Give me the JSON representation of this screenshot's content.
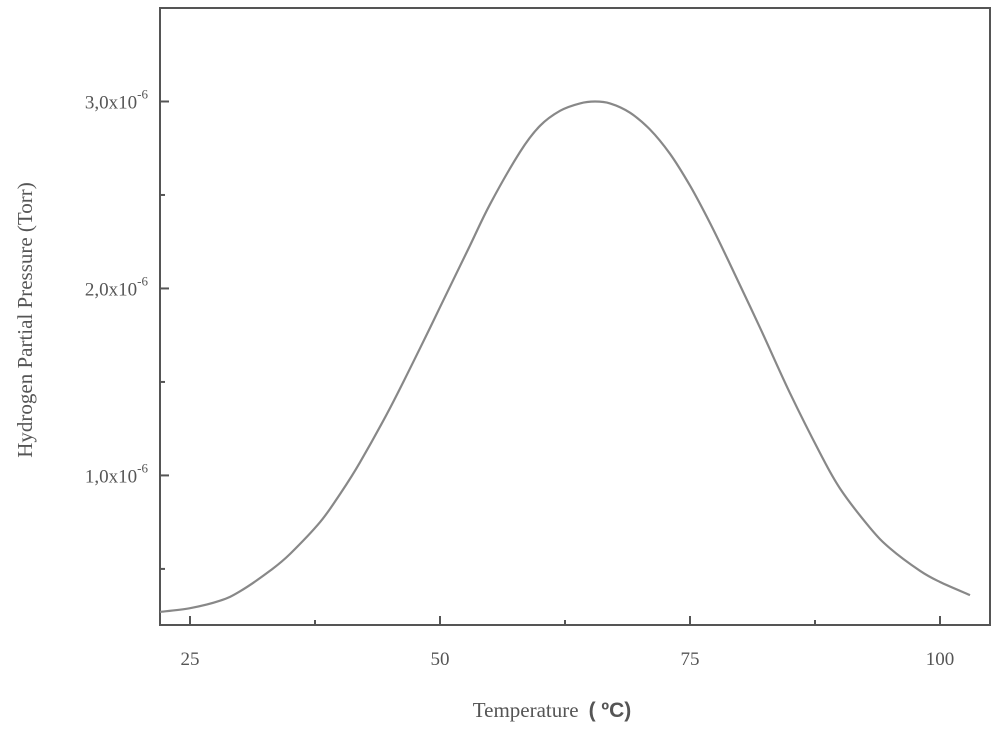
{
  "chart_data": {
    "type": "line",
    "xlabel": "Temperature",
    "xlabel_unit": "( ºC)",
    "ylabel": "Hydrogen Partial Pressure (Torr)",
    "xlim": [
      22,
      105
    ],
    "ylim": [
      2e-07,
      3.5e-06
    ],
    "x_ticks": [
      25,
      50,
      75,
      100
    ],
    "x_tick_labels": [
      "25",
      "50",
      "75",
      "100"
    ],
    "x_minor_ticks": [
      37.5,
      62.5,
      87.5
    ],
    "y_ticks": [
      1e-06,
      2e-06,
      3e-06
    ],
    "y_tick_labels": [
      {
        "mantissa": "1,0x10",
        "exponent": "-6"
      },
      {
        "mantissa": "2,0x10",
        "exponent": "-6"
      },
      {
        "mantissa": "3,0x10",
        "exponent": "-6"
      }
    ],
    "y_minor_ticks": [
      5e-07,
      1.5e-06,
      2.5e-06
    ],
    "grid": false,
    "series": [
      {
        "color": "#888888",
        "x": [
          22,
          25,
          28,
          30,
          33,
          35,
          38,
          40,
          42,
          45,
          48,
          50,
          53,
          55,
          58,
          60,
          62,
          64,
          65.5,
          67,
          69,
          71,
          73,
          75,
          77,
          79,
          82,
          85,
          88,
          90,
          93,
          95,
          98,
          100,
          103
        ],
        "y": [
          2.7e-07,
          2.9e-07,
          3.3e-07,
          3.8e-07,
          4.9e-07,
          5.8e-07,
          7.5e-07,
          9e-07,
          1.07e-06,
          1.36e-06,
          1.68e-06,
          1.9e-06,
          2.23e-06,
          2.45e-06,
          2.73e-06,
          2.87e-06,
          2.95e-06,
          2.99e-06,
          3e-06,
          2.99e-06,
          2.94e-06,
          2.85e-06,
          2.72e-06,
          2.55e-06,
          2.35e-06,
          2.13e-06,
          1.79e-06,
          1.44e-06,
          1.12e-06,
          9.3e-07,
          7.2e-07,
          6.1e-07,
          4.9e-07,
          4.3e-07,
          3.6e-07
        ]
      }
    ]
  }
}
